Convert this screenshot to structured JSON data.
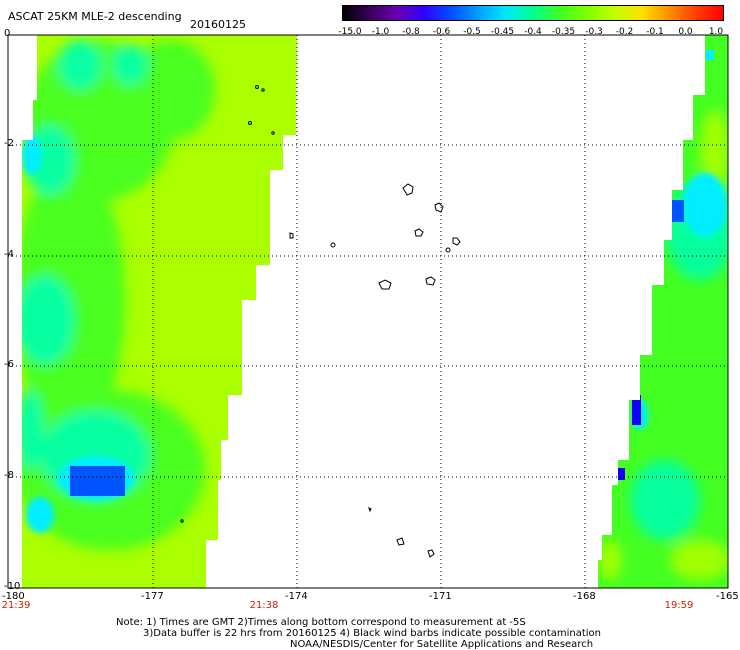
{
  "header": {
    "title": "ASCAT 25KM MLE-2 descending",
    "date": "20160125"
  },
  "colorbar": {
    "labels": [
      "-15.0",
      "-1.0",
      "-0.8",
      "-0.6",
      "-0.5",
      "-0.45",
      "-0.4",
      "-0.35",
      "-0.3",
      "-0.2",
      "-0.1",
      "0.0",
      "1.0"
    ],
    "colors": [
      "#000000",
      "#3a0060",
      "#6a00b0",
      "#3000ff",
      "#0050ff",
      "#00a0ff",
      "#00e8ff",
      "#00ff90",
      "#40ff20",
      "#80ff00",
      "#c0ff00",
      "#ffe000",
      "#ff9000",
      "#ff4000",
      "#ff0000"
    ]
  },
  "axes": {
    "x_ticks": [
      "-180",
      "-177",
      "-174",
      "-171",
      "-168",
      "-165"
    ],
    "y_ticks": [
      "0",
      "-2",
      "-4",
      "-6",
      "-8",
      "-10"
    ]
  },
  "times": {
    "left": "21:39",
    "middle": "21:38",
    "right": "19:59"
  },
  "notes": {
    "line1": "Note: 1) Times are GMT 2)Times along bottom correspond to measurement at -5S",
    "line2": "3)Data buffer is 22 hrs from 20160125 4) Black wind barbs indicate possible contamination",
    "line3": "NOAA/NESDIS/Center for Satellite Applications and Research"
  },
  "map": {
    "lon_range": [
      -180,
      -165
    ],
    "lat_range": [
      -10,
      0
    ],
    "colors": {
      "lime": "#aaff00",
      "green": "#44ff22",
      "teal": "#00ffaa",
      "cyan": "#00eeff",
      "blue": "#0055ff",
      "navy": "#1100ff",
      "violet": "#6600cc"
    }
  }
}
